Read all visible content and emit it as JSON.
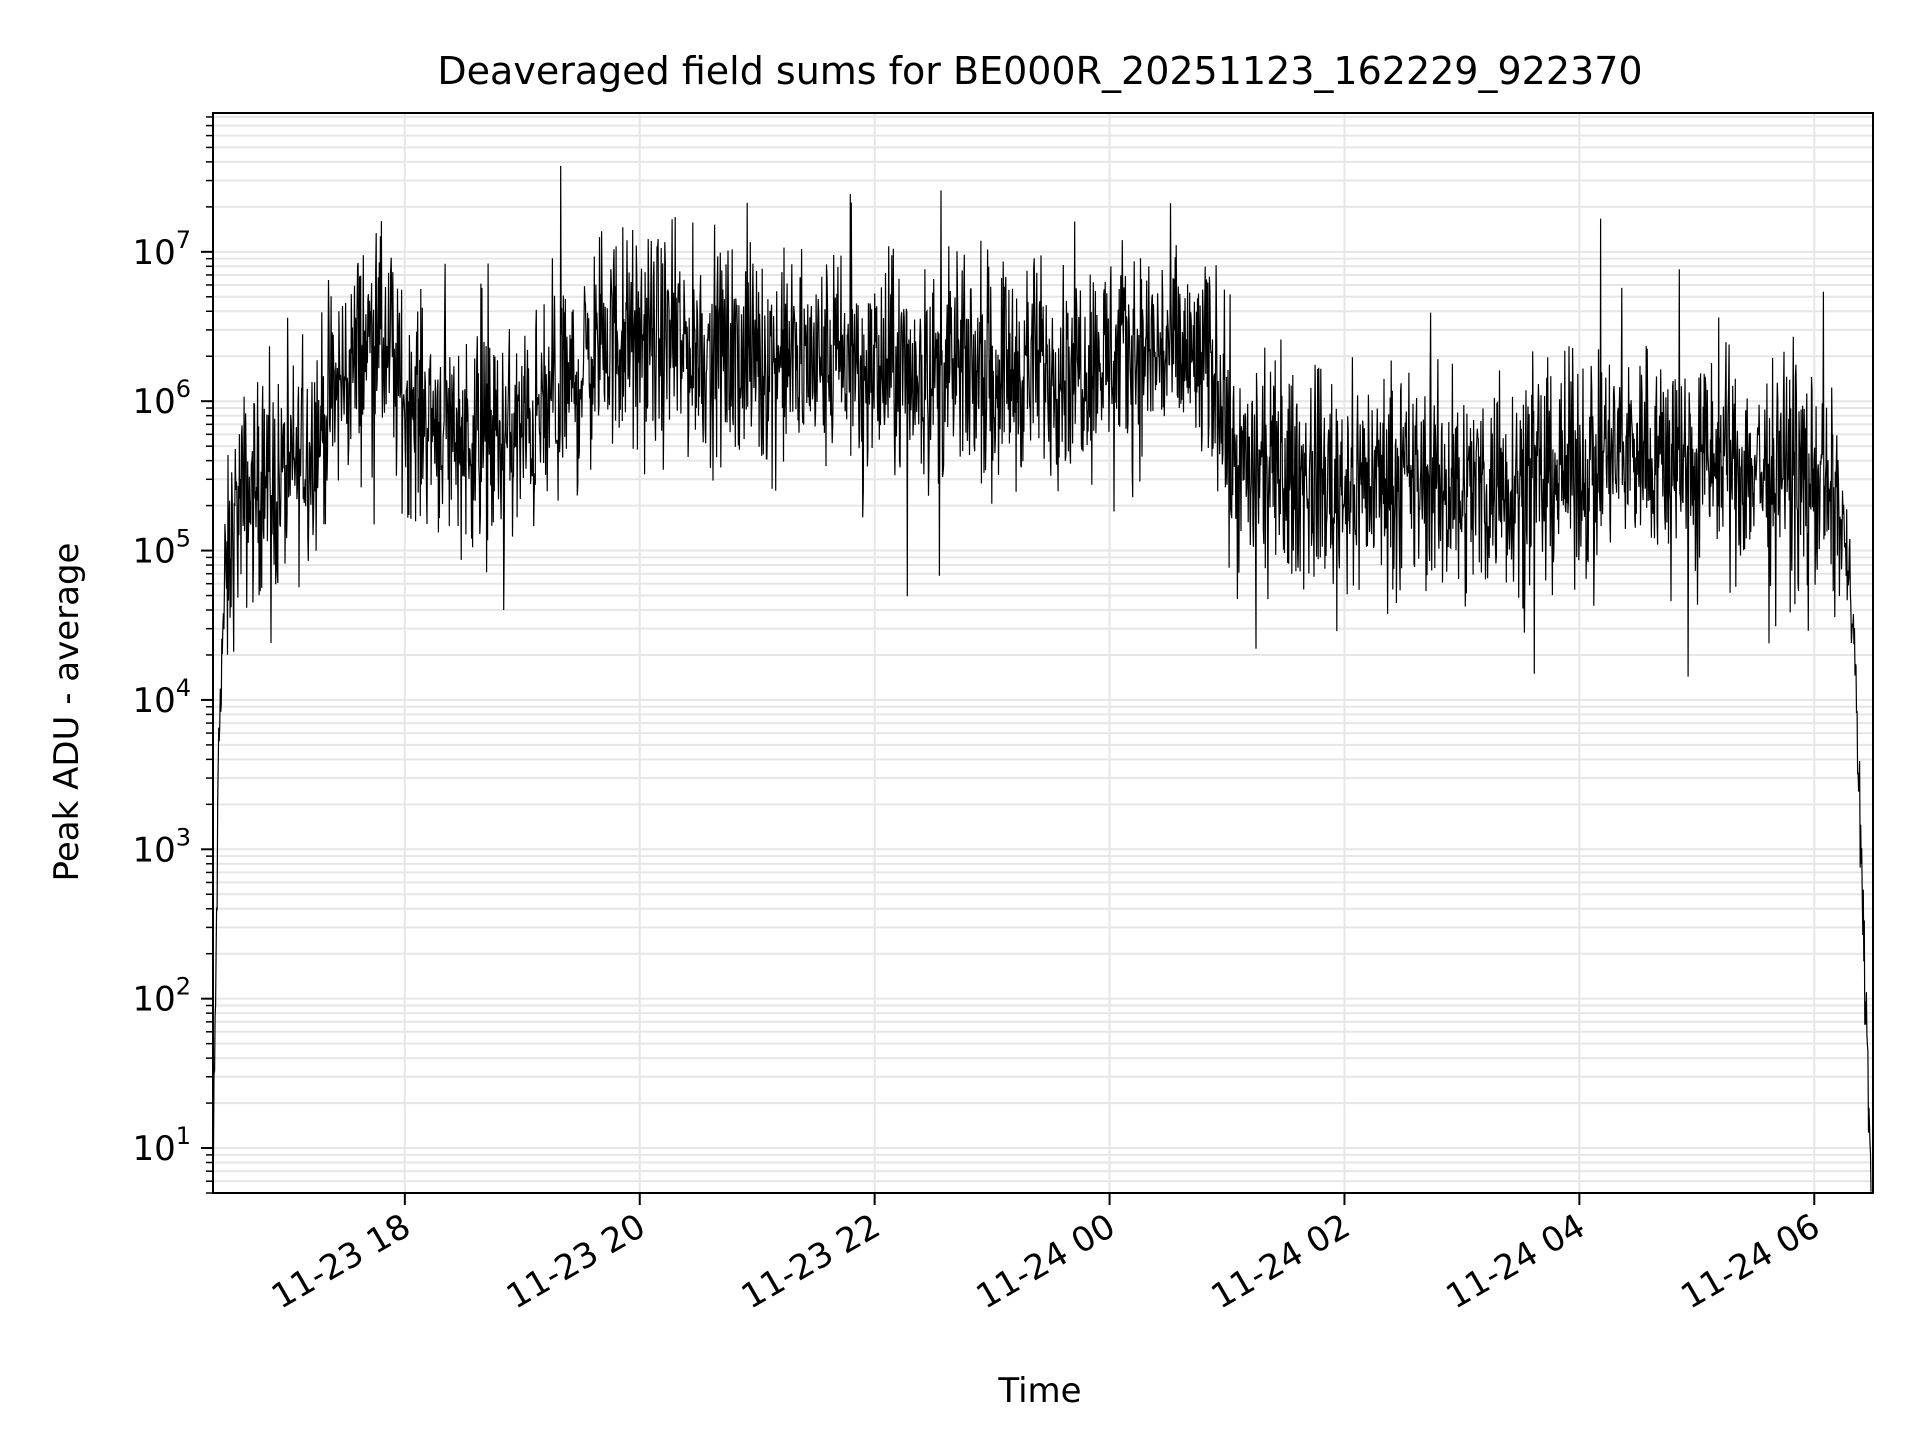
{
  "chart_data": {
    "type": "line",
    "title": "Deaveraged field sums for BE000R_20251123_162229_922370",
    "xlabel": "Time",
    "ylabel": "Peak ADU - average",
    "yscale": "log",
    "ylim": [
      5,
      85000000
    ],
    "xlim": [
      "2025-11-23 16:22",
      "2025-11-24 06:30"
    ],
    "x_ticks": [
      {
        "value": "2025-11-23 18:00",
        "label": "11-23 18"
      },
      {
        "value": "2025-11-23 20:00",
        "label": "11-23 20"
      },
      {
        "value": "2025-11-23 22:00",
        "label": "11-23 22"
      },
      {
        "value": "2025-11-24 00:00",
        "label": "11-24 00"
      },
      {
        "value": "2025-11-24 02:00",
        "label": "11-24 02"
      },
      {
        "value": "2025-11-24 04:00",
        "label": "11-24 04"
      },
      {
        "value": "2025-11-24 06:00",
        "label": "11-24 06"
      }
    ],
    "y_ticks": [
      {
        "value": 10,
        "base": "10",
        "exp": "1"
      },
      {
        "value": 100,
        "base": "10",
        "exp": "2"
      },
      {
        "value": 1000,
        "base": "10",
        "exp": "3"
      },
      {
        "value": 10000,
        "base": "10",
        "exp": "4"
      },
      {
        "value": 100000,
        "base": "10",
        "exp": "5"
      },
      {
        "value": 1000000,
        "base": "10",
        "exp": "6"
      },
      {
        "value": 10000000,
        "base": "10",
        "exp": "7"
      }
    ],
    "grid": true,
    "line_color": "#000000",
    "grid_color": "#e6e6e6",
    "series": [
      {
        "x": [
          "2025-11-23 16:22",
          "2025-11-23 16:24",
          "2025-11-23 16:25",
          "2025-11-23 16:27",
          "2025-11-23 16:30",
          "2025-11-23 16:35",
          "2025-11-23 16:45",
          "2025-11-23 17:00",
          "2025-11-23 17:15",
          "2025-11-23 17:30",
          "2025-11-23 17:45",
          "2025-11-23 18:00",
          "2025-11-23 18:20",
          "2025-11-23 18:40",
          "2025-11-23 19:00",
          "2025-11-23 19:20",
          "2025-11-23 19:40",
          "2025-11-23 20:00",
          "2025-11-23 20:30",
          "2025-11-23 21:00",
          "2025-11-23 21:30",
          "2025-11-23 22:00",
          "2025-11-23 22:30",
          "2025-11-23 23:00",
          "2025-11-23 23:30",
          "2025-11-24 00:00",
          "2025-11-24 00:30",
          "2025-11-24 00:55",
          "2025-11-24 01:05",
          "2025-11-24 01:30",
          "2025-11-24 02:00",
          "2025-11-24 02:30",
          "2025-11-24 03:00",
          "2025-11-24 03:30",
          "2025-11-24 04:00",
          "2025-11-24 04:30",
          "2025-11-24 05:00",
          "2025-11-24 05:30",
          "2025-11-24 06:00",
          "2025-11-24 06:15",
          "2025-11-24 06:20",
          "2025-11-24 06:24",
          "2025-11-24 06:27",
          "2025-11-24 06:29"
        ],
        "y": [
          5,
          500,
          5000,
          30000,
          80000,
          200000,
          250000,
          300000,
          600000,
          1500000,
          3000000,
          1000000,
          700000,
          500000,
          600000,
          1000000,
          2500000,
          2500000,
          2200000,
          2000000,
          1800000,
          1600000,
          1500000,
          1700000,
          1700000,
          2000000,
          2200000,
          1500000,
          350000,
          300000,
          300000,
          300000,
          250000,
          300000,
          350000,
          500000,
          400000,
          350000,
          300000,
          150000,
          30000,
          1000,
          50,
          5
        ],
        "noise_log10": 0.35
      }
    ]
  }
}
